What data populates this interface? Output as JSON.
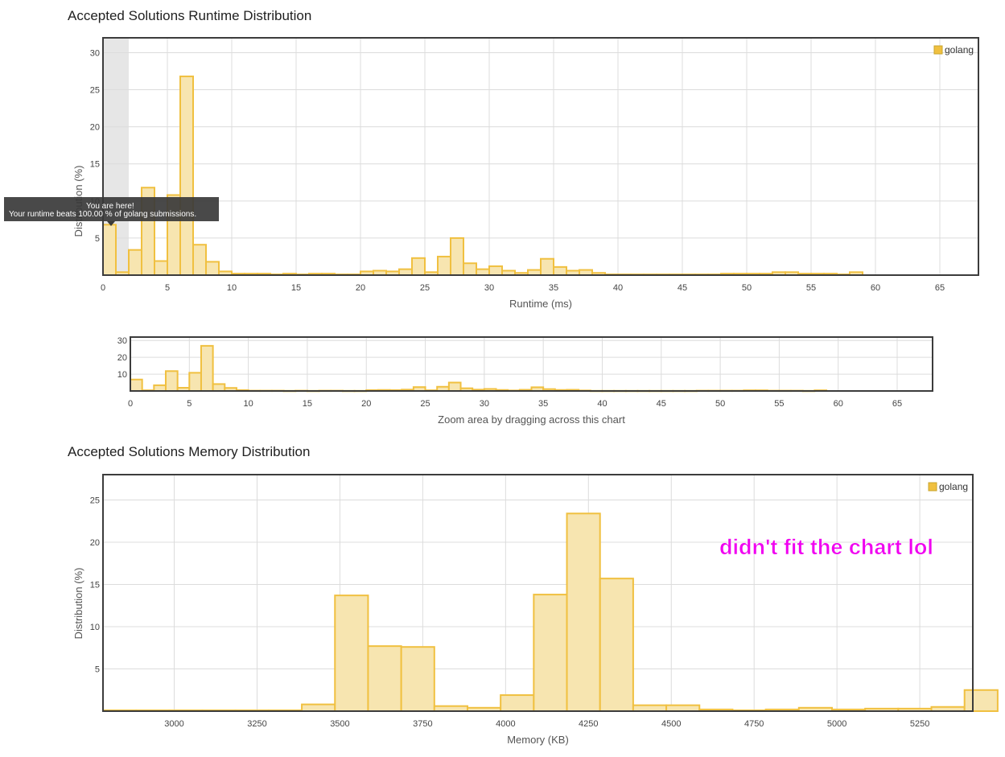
{
  "runtime_section": {
    "title": "Accepted Solutions Runtime Distribution"
  },
  "memory_section": {
    "title": "Accepted Solutions Memory Distribution"
  },
  "navigator": {
    "caption": "Zoom area by dragging across this chart"
  },
  "tooltip": {
    "line1": "You are here!",
    "line2": "Your runtime beats 100.00 % of golang submissions."
  },
  "annotation": {
    "text": "didn't fit the chart lol"
  },
  "colors": {
    "bar_fill": "#f7e5b0",
    "bar_stroke": "#f0c040",
    "legend": "#f0c040",
    "highlight": "#e6e6e6",
    "annotation": "#f000f0"
  },
  "chart_data": [
    {
      "id": "runtime",
      "type": "bar",
      "xlabel": "Runtime (ms)",
      "ylabel": "Distribution (%)",
      "xlim": [
        0,
        68
      ],
      "ylim": [
        0,
        32
      ],
      "xticks": [
        0,
        5,
        10,
        15,
        20,
        25,
        30,
        35,
        40,
        45,
        50,
        55,
        60,
        65
      ],
      "yticks": [
        5,
        10,
        15,
        20,
        25,
        30
      ],
      "bin_width": 1,
      "legend": [
        "golang"
      ],
      "legend_position": "top-right",
      "grid": true,
      "highlight_range": [
        0,
        2
      ],
      "series": [
        {
          "name": "golang",
          "x": [
            0,
            1,
            2,
            3,
            4,
            5,
            6,
            7,
            8,
            9,
            10,
            11,
            12,
            13,
            14,
            15,
            16,
            17,
            18,
            19,
            20,
            21,
            22,
            23,
            24,
            25,
            26,
            27,
            28,
            29,
            30,
            31,
            32,
            33,
            34,
            35,
            36,
            37,
            38,
            39,
            40,
            41,
            42,
            43,
            44,
            45,
            46,
            47,
            48,
            49,
            50,
            51,
            52,
            53,
            54,
            55,
            56,
            57,
            58
          ],
          "values": [
            6.8,
            0.4,
            3.4,
            11.8,
            1.9,
            10.8,
            26.8,
            4.1,
            1.8,
            0.5,
            0.2,
            0.2,
            0.2,
            0.1,
            0.2,
            0.1,
            0.2,
            0.2,
            0.1,
            0.1,
            0.5,
            0.6,
            0.5,
            0.8,
            2.3,
            0.4,
            2.5,
            5.0,
            1.6,
            0.8,
            1.2,
            0.6,
            0.3,
            0.7,
            2.2,
            1.1,
            0.6,
            0.7,
            0.3,
            0.1,
            0.1,
            0.1,
            0.1,
            0.1,
            0.1,
            0.1,
            0.1,
            0.1,
            0.2,
            0.2,
            0.2,
            0.2,
            0.4,
            0.4,
            0.2,
            0.2,
            0.2,
            0.1,
            0.4
          ]
        }
      ]
    },
    {
      "id": "navigator",
      "type": "bar",
      "xlabel": "Zoom area by dragging across this chart",
      "xlim": [
        0,
        68
      ],
      "ylim": [
        0,
        32
      ],
      "xticks": [
        0,
        5,
        10,
        15,
        20,
        25,
        30,
        35,
        40,
        45,
        50,
        55,
        60,
        65
      ],
      "yticks": [
        10,
        20,
        30
      ],
      "bin_width": 1,
      "grid": true,
      "series": [
        {
          "name": "golang",
          "x": [
            0,
            1,
            2,
            3,
            4,
            5,
            6,
            7,
            8,
            9,
            10,
            11,
            12,
            13,
            14,
            15,
            16,
            17,
            18,
            19,
            20,
            21,
            22,
            23,
            24,
            25,
            26,
            27,
            28,
            29,
            30,
            31,
            32,
            33,
            34,
            35,
            36,
            37,
            38,
            39,
            40,
            41,
            42,
            43,
            44,
            45,
            46,
            47,
            48,
            49,
            50,
            51,
            52,
            53,
            54,
            55,
            56,
            57,
            58
          ],
          "values": [
            6.8,
            0.4,
            3.4,
            11.8,
            1.9,
            10.8,
            26.8,
            4.1,
            1.8,
            0.5,
            0.2,
            0.2,
            0.2,
            0.1,
            0.2,
            0.1,
            0.2,
            0.2,
            0.1,
            0.1,
            0.5,
            0.6,
            0.5,
            0.8,
            2.3,
            0.4,
            2.5,
            5.0,
            1.6,
            0.8,
            1.2,
            0.6,
            0.3,
            0.7,
            2.2,
            1.1,
            0.6,
            0.7,
            0.3,
            0.1,
            0.1,
            0.1,
            0.1,
            0.1,
            0.1,
            0.1,
            0.1,
            0.1,
            0.2,
            0.2,
            0.2,
            0.2,
            0.4,
            0.4,
            0.2,
            0.2,
            0.2,
            0.1,
            0.4
          ]
        }
      ]
    },
    {
      "id": "memory",
      "type": "bar",
      "xlabel": "Memory (KB)",
      "ylabel": "Distribution (%)",
      "xlim": [
        2785,
        5410
      ],
      "ylim": [
        0,
        28
      ],
      "xticks": [
        3000,
        3250,
        3500,
        3750,
        4000,
        4250,
        4500,
        4750,
        5000,
        5250
      ],
      "yticks": [
        5,
        10,
        15,
        20,
        25
      ],
      "bin_width": 100,
      "legend": [
        "golang"
      ],
      "legend_position": "top-right",
      "grid": true,
      "series": [
        {
          "name": "golang",
          "x": [
            2785,
            2885,
            2985,
            3085,
            3185,
            3285,
            3385,
            3485,
            3585,
            3685,
            3785,
            3885,
            3985,
            4085,
            4185,
            4285,
            4385,
            4485,
            4585,
            4685,
            4785,
            4885,
            4985,
            5085,
            5185,
            5285,
            5385
          ],
          "values": [
            0.1,
            0.1,
            0.1,
            0.1,
            0.1,
            0.1,
            0.8,
            13.7,
            7.7,
            7.6,
            0.6,
            0.4,
            1.9,
            13.8,
            23.4,
            15.7,
            0.7,
            0.7,
            0.2,
            0.1,
            0.2,
            0.4,
            0.2,
            0.3,
            0.3,
            0.5,
            2.5
          ]
        }
      ]
    }
  ]
}
